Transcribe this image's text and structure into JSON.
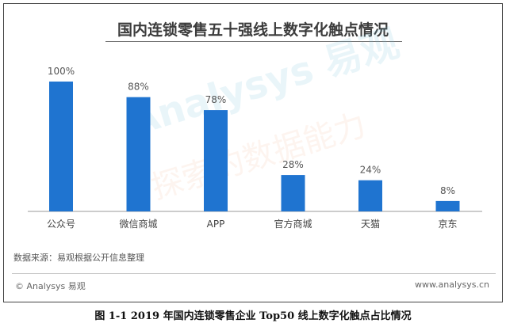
{
  "chart_data": {
    "type": "bar",
    "title": "国内连锁零售五十强线上数字化触点情况",
    "categories": [
      "公众号",
      "微信商城",
      "APP",
      "官方商城",
      "天猫",
      "京东"
    ],
    "values": [
      100,
      88,
      78,
      28,
      24,
      8
    ],
    "value_labels": [
      "100%",
      "88%",
      "78%",
      "28%",
      "24%",
      "8%"
    ],
    "ylim": [
      0,
      100
    ],
    "grid": false,
    "legend": "none",
    "bar_color": "#1f74d0"
  },
  "footer": {
    "source": "数据来源：易观根据公开信息整理",
    "brand": "© Analysys 易观",
    "site": "www.analysys.cn"
  },
  "watermark": {
    "primary": "Analysys 易观",
    "secondary": "探索的数据能力"
  },
  "caption": "图 1-1 2019 年国内连锁零售企业 Top50 线上数字化触点占比情况"
}
